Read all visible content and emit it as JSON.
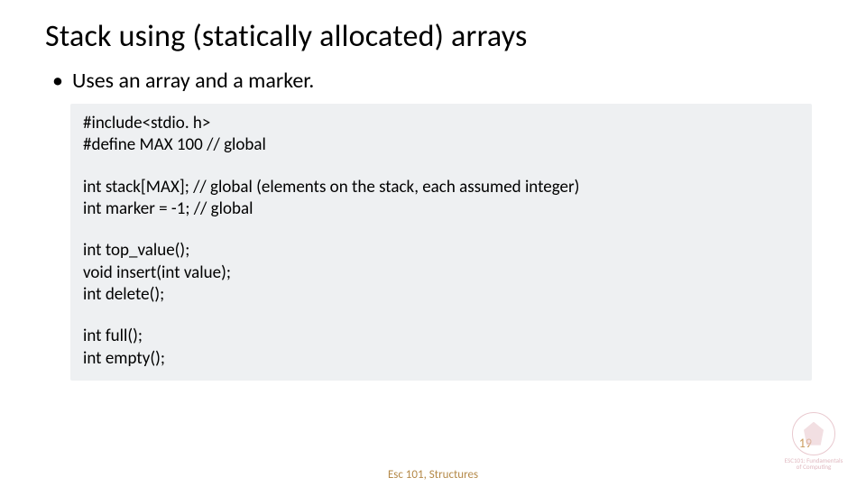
{
  "title": "Stack using (statically allocated) arrays",
  "bullet": "Uses an array and a marker.",
  "code": {
    "l1": "#include<stdio. h>",
    "l2": "#define MAX 100 // global",
    "l3": "int stack[MAX]; // global (elements on the stack, each assumed integer)",
    "l4": "int marker = -1; // global",
    "l5": "int top_value();",
    "l6": "void insert(int value);",
    "l7": "int delete();",
    "l8": "int full();",
    "l9": "int empty();"
  },
  "footer": "Esc 101, Structures",
  "page_number": "19",
  "logo_line1": "ESC101: Fundamentals",
  "logo_line2": "of Computing",
  "colors": {
    "code_bg": "#eef0f2",
    "footer_text": "#b58a4a",
    "page_num": "#c99a5b",
    "logo": "#e9c9cf"
  }
}
